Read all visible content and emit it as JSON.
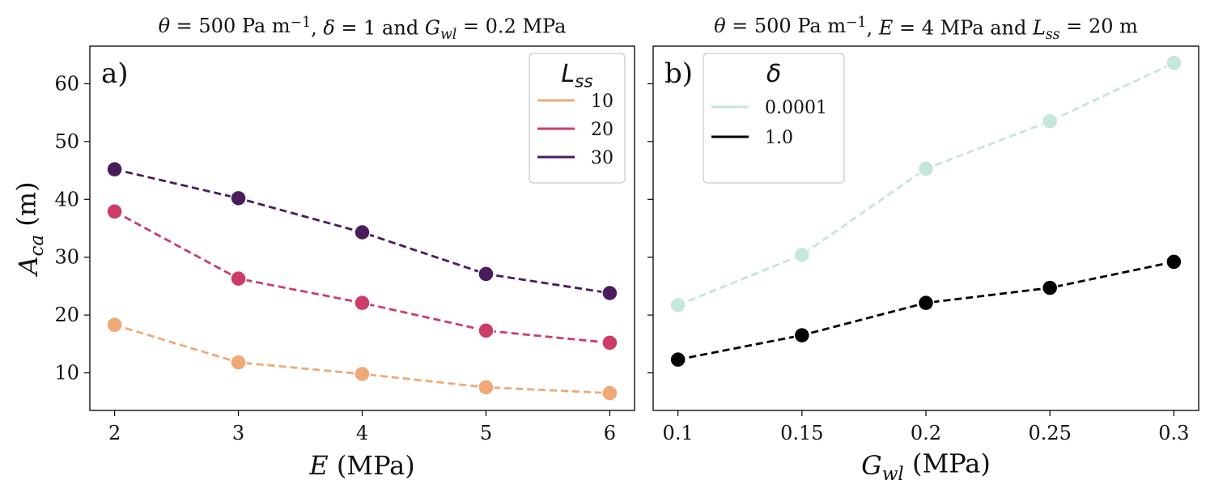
{
  "chart_data": [
    {
      "type": "line",
      "panel_label": "a)",
      "title": "θ = 500 Pa m⁻¹, δ = 1 and G_wl = 0.2 MPa",
      "title_parts": [
        {
          "t": "θ",
          "i": true
        },
        {
          "t": " = 500 Pa m"
        },
        {
          "t": "−1",
          "sup": true
        },
        {
          "t": ", "
        },
        {
          "t": "δ",
          "i": true
        },
        {
          "t": " = 1 and "
        },
        {
          "t": "G",
          "i": true
        },
        {
          "t": "wl",
          "sub": true,
          "i": true
        },
        {
          "t": " = 0.2 MPa"
        }
      ],
      "xlabel": "E (MPa)",
      "xlabel_parts": [
        {
          "t": "E",
          "i": true
        },
        {
          "t": " (MPa)"
        }
      ],
      "ylabel": "A_ca (m)",
      "ylabel_parts": [
        {
          "t": "A",
          "i": true
        },
        {
          "t": "ca",
          "sub": true,
          "i": true
        },
        {
          "t": " (m)"
        }
      ],
      "x": [
        2,
        3,
        4,
        5,
        6
      ],
      "xticks": [
        "2",
        "3",
        "4",
        "5",
        "6"
      ],
      "xlim": [
        1.8,
        6.2
      ],
      "ylim": [
        3.5,
        66.5
      ],
      "yticks": [
        10,
        20,
        30,
        40,
        50,
        60
      ],
      "ytick_labels": [
        "10",
        "20",
        "30",
        "40",
        "50",
        "60"
      ],
      "grid": false,
      "legend_placement": "top-right",
      "legend_title": "L_ss",
      "legend_title_parts": [
        {
          "t": "L",
          "i": true
        },
        {
          "t": "ss",
          "sub": true,
          "i": true
        }
      ],
      "series": [
        {
          "name": "10",
          "color": "#f0a877",
          "values": [
            18.3,
            11.8,
            9.8,
            7.5,
            6.5
          ]
        },
        {
          "name": "20",
          "color": "#cc3d68",
          "values": [
            37.9,
            26.3,
            22.1,
            17.3,
            15.2
          ]
        },
        {
          "name": "30",
          "color": "#4a1c5c",
          "values": [
            45.2,
            40.2,
            34.3,
            27.1,
            23.8
          ]
        }
      ]
    },
    {
      "type": "line",
      "panel_label": "b)",
      "title": "θ = 500 Pa m⁻¹, E = 4 MPa and L_ss = 20 m",
      "title_parts": [
        {
          "t": "θ",
          "i": true
        },
        {
          "t": " = 500 Pa m"
        },
        {
          "t": "−1",
          "sup": true
        },
        {
          "t": ", "
        },
        {
          "t": "E",
          "i": true
        },
        {
          "t": " = 4 MPa and "
        },
        {
          "t": "L",
          "i": true
        },
        {
          "t": "ss",
          "sub": true,
          "i": true
        },
        {
          "t": " = 20 m"
        }
      ],
      "xlabel": "G_wl (MPa)",
      "xlabel_parts": [
        {
          "t": "G",
          "i": true
        },
        {
          "t": "wl",
          "sub": true,
          "i": true
        },
        {
          "t": " (MPa)"
        }
      ],
      "x": [
        0.1,
        0.15,
        0.2,
        0.25,
        0.3
      ],
      "xticks": [
        "0.1",
        "0.15",
        "0.2",
        "0.25",
        "0.3"
      ],
      "xlim": [
        0.09,
        0.31
      ],
      "ylim": [
        3.5,
        66.5
      ],
      "yticks": [
        10,
        20,
        30,
        40,
        50,
        60
      ],
      "shared_y": true,
      "grid": false,
      "legend_placement": "top-left",
      "legend_title": "δ",
      "legend_title_parts": [
        {
          "t": "δ",
          "i": true
        }
      ],
      "series": [
        {
          "name": "0.0001",
          "color": "#c4e6dc",
          "values": [
            21.7,
            30.4,
            45.3,
            53.5,
            63.6
          ]
        },
        {
          "name": "1.0",
          "color": "#000000",
          "values": [
            12.3,
            16.5,
            22.1,
            24.7,
            29.2
          ]
        }
      ]
    }
  ]
}
